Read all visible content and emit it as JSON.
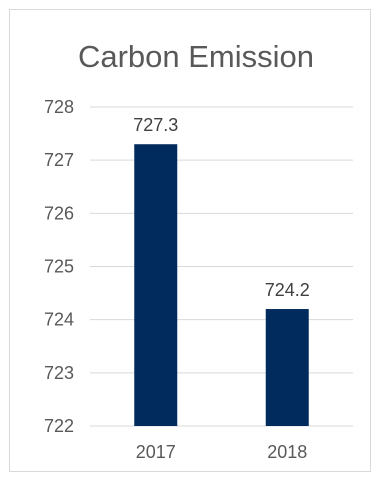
{
  "chart_data": {
    "type": "bar",
    "title": "Carbon Emission",
    "categories": [
      "2017",
      "2018"
    ],
    "values": [
      727.3,
      724.2
    ],
    "data_labels": [
      "727.3",
      "724.2"
    ],
    "ylim": [
      722,
      728
    ],
    "yticks": [
      "722",
      "723",
      "724",
      "725",
      "726",
      "727",
      "728"
    ],
    "xlabel": "",
    "ylabel": "",
    "grid": true,
    "legend": "none",
    "bar_color": "#002b5c",
    "gridline_color": "#d9d9d9"
  }
}
